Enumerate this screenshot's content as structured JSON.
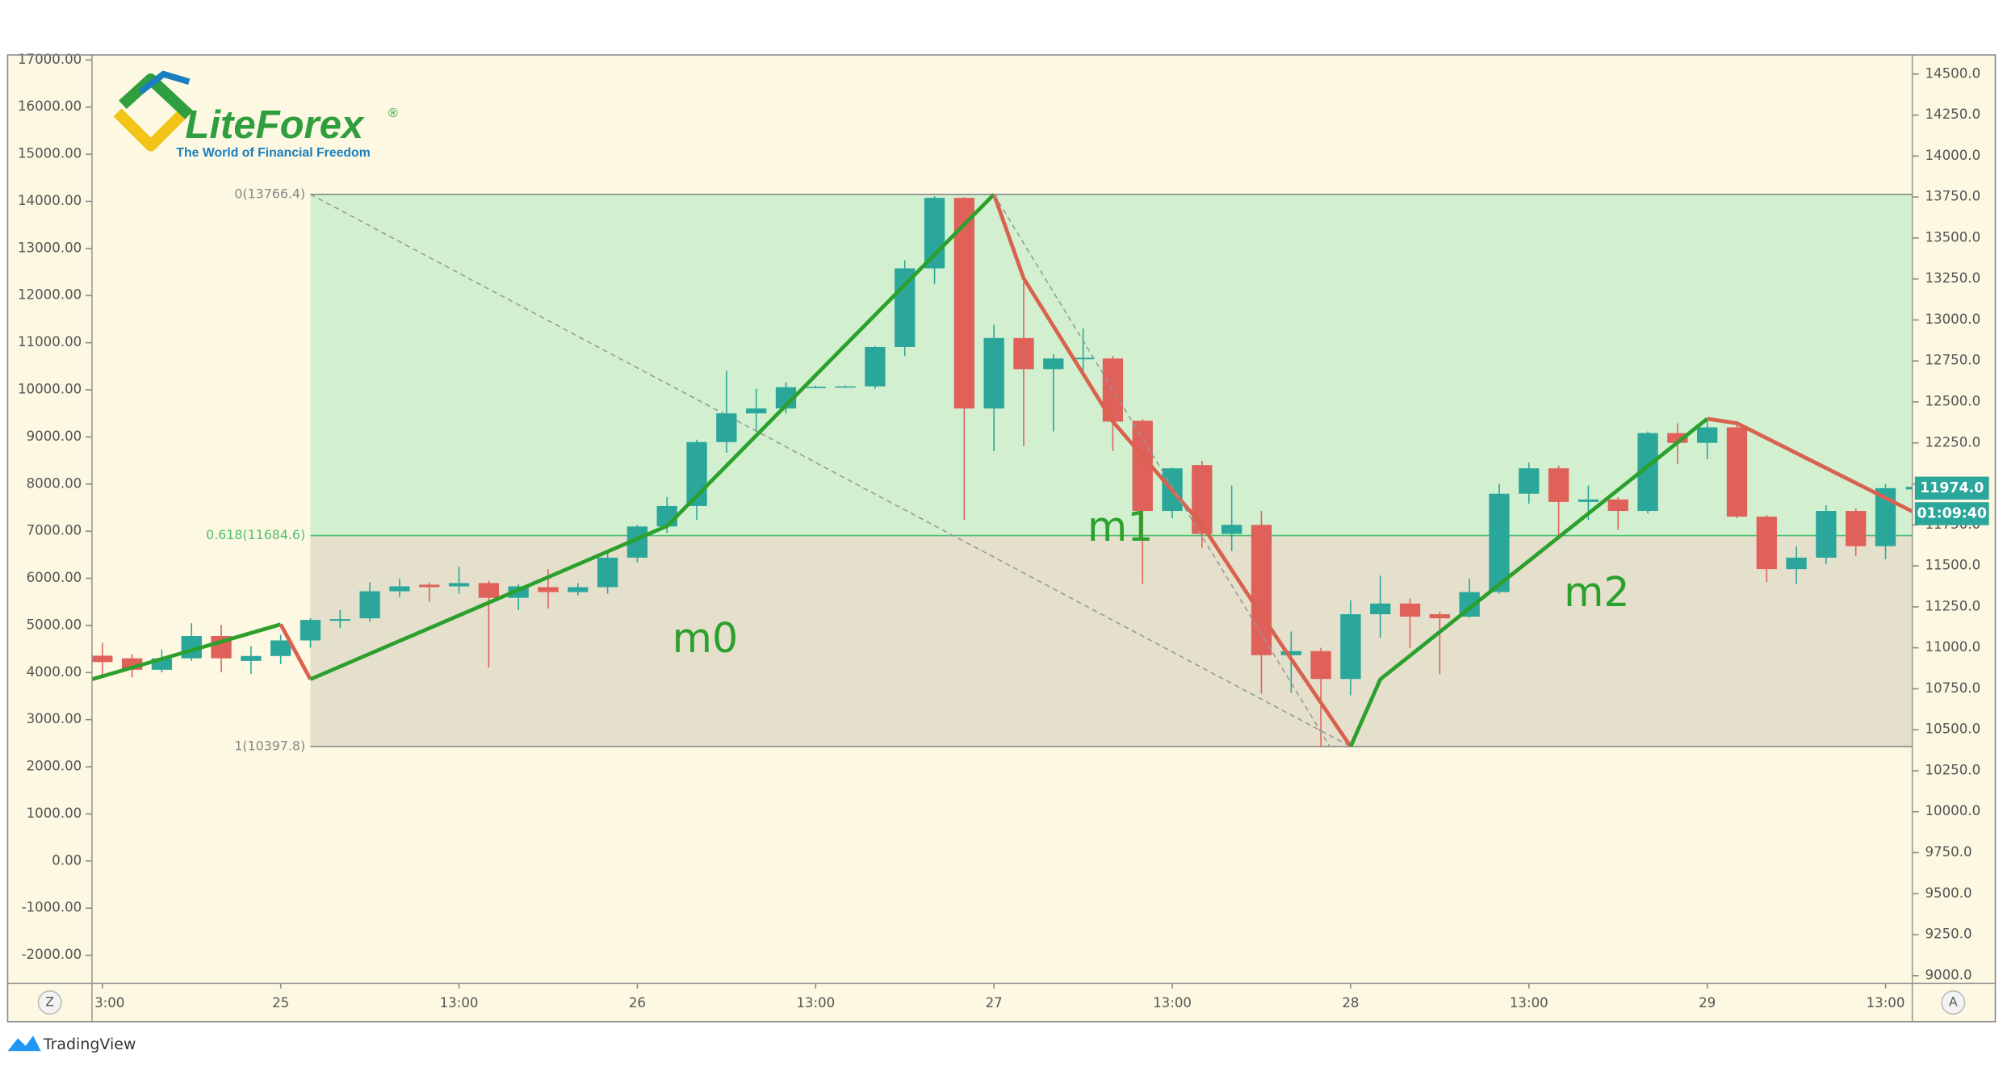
{
  "chart_data": {
    "type": "candlestick",
    "up_color": "#2aa69a",
    "down_color": "#e0605a",
    "open": [
      10952,
      10936,
      10866,
      10936,
      11072,
      10920,
      10950,
      11045,
      11165,
      11180,
      11345,
      11385,
      11375,
      11395,
      11305,
      11370,
      11340,
      11370,
      11550,
      11740,
      11865,
      12255,
      12430,
      12460,
      12590,
      12592,
      12595,
      12835,
      13315,
      13745,
      12460,
      12890,
      12700,
      12760,
      12765,
      12385,
      11835,
      12115,
      11695,
      11750,
      10955,
      10980,
      10810,
      11205,
      11270,
      11205,
      11190,
      11340,
      11940,
      12095,
      11890,
      11905,
      11835,
      12310,
      12250,
      12345,
      11800,
      11480,
      11550,
      11835,
      11620
    ],
    "high": [
      11030,
      10960,
      10990,
      11150,
      11140,
      11010,
      11080,
      11180,
      11230,
      11400,
      11420,
      11400,
      11495,
      11410,
      11390,
      11480,
      11395,
      11590,
      11750,
      11920,
      12270,
      12690,
      12580,
      12620,
      12600,
      12600,
      12840,
      13365,
      13755,
      13750,
      12970,
      13230,
      12790,
      12950,
      12780,
      12395,
      12100,
      12140,
      11990,
      11835,
      11100,
      11000,
      11290,
      11440,
      11300,
      11220,
      11420,
      12000,
      12130,
      12110,
      11990,
      11920,
      12320,
      12370,
      12400,
      12365,
      11810,
      11620,
      11870,
      11850,
      12000
    ],
    "low": [
      10835,
      10820,
      10850,
      10920,
      10850,
      10840,
      10900,
      11000,
      11120,
      11160,
      11310,
      11280,
      11330,
      10880,
      11230,
      11240,
      11320,
      11330,
      11520,
      11700,
      11780,
      12190,
      12320,
      12430,
      12585,
      12585,
      12580,
      12780,
      13220,
      11780,
      12200,
      12230,
      12320,
      12680,
      12200,
      11390,
      11790,
      11610,
      11590,
      10720,
      10725,
      10400,
      10710,
      11060,
      11000,
      10840,
      11185,
      11330,
      11880,
      11665,
      11780,
      11720,
      11820,
      12120,
      12150,
      11790,
      11400,
      11390,
      11510,
      11560,
      11540
    ],
    "close": [
      10913,
      10866,
      10936,
      11072,
      10936,
      10950,
      11045,
      11170,
      11175,
      11345,
      11375,
      11370,
      11395,
      11305,
      11375,
      11340,
      11370,
      11550,
      11740,
      11865,
      12255,
      12430,
      12460,
      12590,
      12592,
      12595,
      12835,
      13315,
      13745,
      12460,
      12890,
      12700,
      12765,
      12770,
      12380,
      11835,
      12095,
      11695,
      11750,
      10955,
      10980,
      10810,
      11205,
      11270,
      11190,
      11180,
      11340,
      11940,
      12095,
      11890,
      11905,
      11835,
      12310,
      12250,
      12345,
      11800,
      11480,
      11550,
      11835,
      11620,
      11974
    ],
    "xlim": [
      -0.35,
      60.9
    ],
    "xticks": [
      {
        "value": 0,
        "label": "3:00"
      },
      {
        "value": 6,
        "label": "25"
      },
      {
        "value": 12,
        "label": "13:00"
      },
      {
        "value": 18,
        "label": "26"
      },
      {
        "value": 24,
        "label": "13:00"
      },
      {
        "value": 30,
        "label": "27"
      },
      {
        "value": 36,
        "label": "13:00"
      },
      {
        "value": 42,
        "label": "28"
      },
      {
        "value": 48,
        "label": "13:00"
      },
      {
        "value": 54,
        "label": "29"
      },
      {
        "value": 60,
        "label": "13:00"
      }
    ],
    "ylim": [
      8953,
      14617
    ],
    "yticks": [
      {
        "value": 14500,
        "label": "14500.0"
      },
      {
        "value": 14250,
        "label": "14250.0"
      },
      {
        "value": 14000,
        "label": "14000.0"
      },
      {
        "value": 13750,
        "label": "13750.0"
      },
      {
        "value": 13500,
        "label": "13500.0"
      },
      {
        "value": 13250,
        "label": "13250.0"
      },
      {
        "value": 13000,
        "label": "13000.0"
      },
      {
        "value": 12750,
        "label": "12750.0"
      },
      {
        "value": 12500,
        "label": "12500.0"
      },
      {
        "value": 12250,
        "label": "12250.0"
      },
      {
        "value": 12000,
        "label": "12000.0"
      },
      {
        "value": 11750,
        "label": "11750.0"
      },
      {
        "value": 11500,
        "label": "11500.0"
      },
      {
        "value": 11250,
        "label": "11250.0"
      },
      {
        "value": 11000,
        "label": "11000.0"
      },
      {
        "value": 10750,
        "label": "10750.0"
      },
      {
        "value": 10500,
        "label": "10500.0"
      },
      {
        "value": 10250,
        "label": "10250.0"
      },
      {
        "value": 10000,
        "label": "10000.0"
      },
      {
        "value": 9750,
        "label": "9750.0"
      },
      {
        "value": 9500,
        "label": "9500.0"
      },
      {
        "value": 9250,
        "label": "9250.0"
      },
      {
        "value": 9000,
        "label": "9000.0"
      }
    ],
    "y2lim": [
      -2596,
      17108
    ],
    "y2ticks": [
      {
        "value": 17000,
        "label": "17000.00"
      },
      {
        "value": 16000,
        "label": "16000.00"
      },
      {
        "value": 15000,
        "label": "15000.00"
      },
      {
        "value": 14000,
        "label": "14000.00"
      },
      {
        "value": 13000,
        "label": "13000.00"
      },
      {
        "value": 12000,
        "label": "12000.00"
      },
      {
        "value": 11000,
        "label": "11000.00"
      },
      {
        "value": 10000,
        "label": "10000.00"
      },
      {
        "value": 9000,
        "label": "9000.00"
      },
      {
        "value": 8000,
        "label": "8000.00"
      },
      {
        "value": 7000,
        "label": "7000.00"
      },
      {
        "value": 6000,
        "label": "6000.00"
      },
      {
        "value": 5000,
        "label": "5000.00"
      },
      {
        "value": 4000,
        "label": "4000.00"
      },
      {
        "value": 3000,
        "label": "3000.00"
      },
      {
        "value": 2000,
        "label": "2000.00"
      },
      {
        "value": 1000,
        "label": "1000.00"
      },
      {
        "value": 0,
        "label": "0.00"
      },
      {
        "value": -1000,
        "label": "-1000.00"
      },
      {
        "value": -2000,
        "label": "-2000.00"
      }
    ],
    "fib": {
      "x": [
        7,
        42
      ],
      "y": [
        13766.4,
        10397.8
      ],
      "levels": [
        {
          "value": 13766.4,
          "label": "0(13766.4)"
        },
        {
          "value": 11684.6,
          "label": "0.618(11684.6)"
        },
        {
          "value": 10397.8,
          "label": "1(10397.8)"
        }
      ]
    },
    "overlays": [
      {
        "color": "#2ca02c",
        "dash": false,
        "x": [
          -0.35,
          6
        ],
        "y": [
          10808,
          11143
        ]
      },
      {
        "color": "#d9624f",
        "dash": false,
        "x": [
          6,
          7
        ],
        "y": [
          11143,
          10808
        ]
      },
      {
        "color": "#2ca02c",
        "dash": false,
        "x": [
          7,
          19,
          30
        ],
        "y": [
          10808,
          11743,
          13766.4
        ]
      },
      {
        "color": "#d9624f",
        "dash": false,
        "x": [
          30,
          31,
          34,
          37,
          39,
          42
        ],
        "y": [
          13766.4,
          13254,
          12380,
          11750,
          11200,
          10397.8
        ]
      },
      {
        "color": "#2ca02c",
        "dash": false,
        "x": [
          42,
          43,
          54
        ],
        "y": [
          10397.8,
          10808,
          12397
        ]
      },
      {
        "color": "#d9624f",
        "dash": false,
        "x": [
          54,
          55,
          60.9
        ],
        "y": [
          12397,
          12370,
          11832
        ]
      },
      {
        "color": "#999999",
        "dash": true,
        "x": [
          30,
          41.3
        ],
        "y": [
          13766.4,
          10397.8
        ]
      }
    ],
    "annotations": [
      "m0",
      "m1",
      "m2"
    ],
    "last_price": {
      "value": 11974,
      "label": "11974.0"
    },
    "countdown": "01:09:40"
  },
  "logo": {
    "brand": "LiteForex",
    "registered": "®",
    "tagline": "The World of Financial Freedom"
  },
  "buttons": [
    "Z",
    "A"
  ],
  "footer": "TradingView"
}
